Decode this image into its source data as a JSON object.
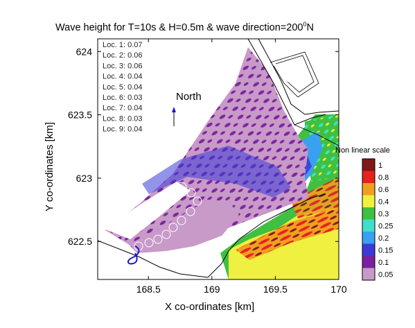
{
  "chart_data": {
    "type": "heatmap",
    "title_main": "Wave height for T=10s & H=0.5m & wave direction=200",
    "title_sup": "0",
    "title_tail": "N",
    "xlabel": "X co-ordinates [km]",
    "ylabel": "Y co-ordinates [km]",
    "xlim": [
      168.1,
      170.0
    ],
    "ylim": [
      622.2,
      624.1
    ],
    "xticks": [
      168.5,
      169,
      169.5,
      170
    ],
    "xtick_labels": [
      "168.5",
      "169",
      "169.5",
      "170"
    ],
    "yticks": [
      622.5,
      623,
      623.5,
      624
    ],
    "ytick_labels": [
      "622.5",
      "623",
      "623.5",
      "624"
    ],
    "annotation_north": "North",
    "locations": [
      {
        "label": "Loc. 1: 0.07",
        "value": 0.07
      },
      {
        "label": "Loc. 2: 0.06",
        "value": 0.06
      },
      {
        "label": "Loc. 3: 0.06",
        "value": 0.06
      },
      {
        "label": "Loc. 4: 0.04",
        "value": 0.04
      },
      {
        "label": "Loc. 5: 0.04",
        "value": 0.04
      },
      {
        "label": "Loc. 6: 0.03",
        "value": 0.03
      },
      {
        "label": "Loc. 7: 0.04",
        "value": 0.04
      },
      {
        "label": "Loc. 8: 0.03",
        "value": 0.03
      },
      {
        "label": "Loc. 9: 0.04",
        "value": 0.04
      }
    ],
    "colorbar": {
      "title": "Non linear scale",
      "levels": [
        "0.05",
        "0.1",
        "0.15",
        "0.2",
        "0.25",
        "0.3",
        "0.4",
        "0.6",
        "0.8",
        "1"
      ],
      "colors": [
        "#c89ac8",
        "#7a1fa0",
        "#3a3ad8",
        "#3aa0f0",
        "#40e0c8",
        "#40c040",
        "#f0f040",
        "#f0a020",
        "#e82020",
        "#801818"
      ]
    },
    "grid": false,
    "legend_position": "right"
  }
}
